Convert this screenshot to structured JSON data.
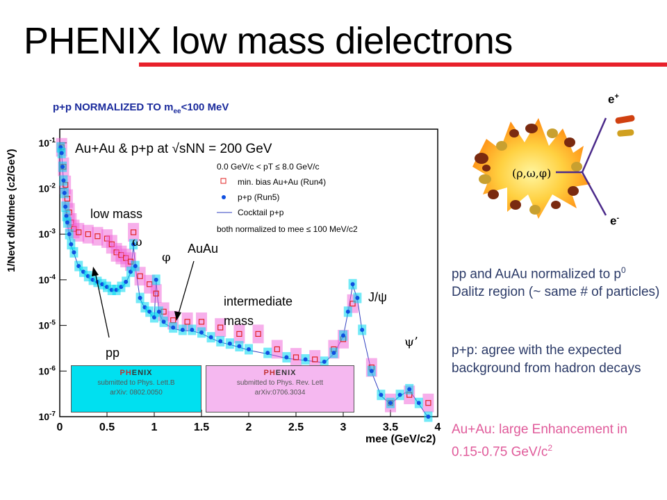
{
  "slide": {
    "title": "PHENIX low mass dielectrons",
    "norm_label_main": "p+p NORMALIZED TO m",
    "norm_label_sub": "ee",
    "norm_label_tail": "<100 MeV",
    "annotations": {
      "low_mass": "low mass",
      "omega": "ω",
      "phi": "φ",
      "auau": "AuAu",
      "intermediate": "intermediate",
      "mass": "mass",
      "jpsi": "J/ψ",
      "psiprime": "ψ’",
      "pp": "pp"
    },
    "badge_left": {
      "logo_a": "PH",
      "logo_b": "ENIX",
      "line1": "submitted to Phys. Lett.B",
      "line2": "arXiv: 0802.0050",
      "color": "#00e0f0"
    },
    "badge_right": {
      "logo_a": "PH",
      "logo_b": "ENIX",
      "line1": "submitted to Phys. Rev. Lett",
      "line2": "arXiv:0706.3034",
      "color": "#f5b8f0"
    },
    "diagram": {
      "e_plus": "e",
      "e_plus_sup": "+",
      "e_minus": "e",
      "e_minus_sup": "-",
      "mesons": "(ρ,ω,φ)"
    },
    "text1_a": "pp and AuAu normalized to p",
    "text1_sup": "0",
    "text1_b": " Dalitz region (~ same # of particles)",
    "text2": "p+p: agree with the expected background from hadron decays",
    "text3_a": "Au+Au: large Enhancement in 0.15-0.75 GeV/c",
    "text3_sup": "2"
  },
  "chart_data": {
    "type": "scatter",
    "title": "Au+Au & p+p at √sNN = 200 GeV",
    "xlabel": "mee (GeV/c2)",
    "ylabel": "1/Nevt dN/dmee (c2/GeV)",
    "xlim": [
      0,
      4
    ],
    "ylim": [
      1e-07,
      0.2
    ],
    "yscale": "log",
    "xticks": [
      "0",
      "0.5",
      "1",
      "1.5",
      "2",
      "2.5",
      "3",
      "3.5",
      "4"
    ],
    "yticks": [
      "10-1",
      "10-2",
      "10-3",
      "10-4",
      "10-5",
      "10-6",
      "10-7"
    ],
    "legend_position": "top-right",
    "legend": {
      "pt_cut": "0.0 GeV/c < pT ≤ 8.0 GeV/c",
      "auau": "min. bias Au+Au (Run4)",
      "pp": "p+p (Run5)",
      "cocktail": "Cocktail p+p",
      "norm": "both normalized to mee ≤ 100 MeV/c2"
    },
    "series": [
      {
        "name": "min. bias Au+Au (Run4)",
        "color": "#e02020",
        "x": [
          0.02,
          0.04,
          0.06,
          0.08,
          0.1,
          0.12,
          0.15,
          0.2,
          0.3,
          0.4,
          0.5,
          0.55,
          0.6,
          0.65,
          0.7,
          0.75,
          0.78,
          0.85,
          0.95,
          1.02,
          1.1,
          1.2,
          1.35,
          1.5,
          1.7,
          1.9,
          2.1,
          2.3,
          2.5,
          2.7,
          2.9,
          3.0,
          3.1,
          3.3,
          3.5,
          3.7,
          3.9
        ],
        "y": [
          0.08,
          0.03,
          0.012,
          0.006,
          0.003,
          0.0018,
          0.0013,
          0.0011,
          0.001,
          0.0009,
          0.0008,
          0.0006,
          0.0004,
          0.00035,
          0.0003,
          0.00025,
          0.0011,
          0.00012,
          8e-05,
          5e-05,
          2e-05,
          1.3e-05,
          1.2e-05,
          1.2e-05,
          9e-06,
          6.5e-06,
          6.5e-06,
          3e-06,
          2e-06,
          1.8e-06,
          3e-06,
          5e-06,
          3e-05,
          1.2e-06,
          2e-07,
          3e-07,
          2e-07
        ]
      },
      {
        "name": "p+p (Run5)",
        "color": "#1050e0",
        "x": [
          0.01,
          0.02,
          0.03,
          0.04,
          0.05,
          0.06,
          0.07,
          0.08,
          0.1,
          0.12,
          0.15,
          0.2,
          0.25,
          0.3,
          0.35,
          0.4,
          0.45,
          0.5,
          0.55,
          0.6,
          0.65,
          0.7,
          0.75,
          0.78,
          0.8,
          0.85,
          0.9,
          0.95,
          1.0,
          1.02,
          1.05,
          1.1,
          1.2,
          1.3,
          1.4,
          1.5,
          1.6,
          1.7,
          1.8,
          1.9,
          2.0,
          2.2,
          2.4,
          2.6,
          2.8,
          2.9,
          3.0,
          3.05,
          3.1,
          3.15,
          3.2,
          3.3,
          3.4,
          3.5,
          3.6,
          3.7,
          3.8,
          3.9
        ],
        "y": [
          0.08,
          0.06,
          0.03,
          0.015,
          0.008,
          0.004,
          0.0025,
          0.0018,
          0.001,
          0.0006,
          0.0004,
          0.0002,
          0.00015,
          0.00012,
          0.0001,
          9e-05,
          8e-05,
          7e-05,
          6e-05,
          6e-05,
          7e-05,
          9e-05,
          0.00015,
          0.0006,
          0.0002,
          4e-05,
          2.5e-05,
          2e-05,
          1.5e-05,
          0.0001,
          2e-05,
          1.2e-05,
          9e-06,
          8e-06,
          8e-06,
          7e-06,
          5.5e-06,
          4.5e-06,
          4e-06,
          3.5e-06,
          3e-06,
          2.5e-06,
          2e-06,
          1.8e-06,
          1.6e-06,
          2.5e-06,
          6e-06,
          2e-05,
          8e-05,
          4e-05,
          8e-06,
          1e-06,
          3e-07,
          2e-07,
          3e-07,
          4e-07,
          2e-07,
          1e-07
        ]
      }
    ]
  }
}
